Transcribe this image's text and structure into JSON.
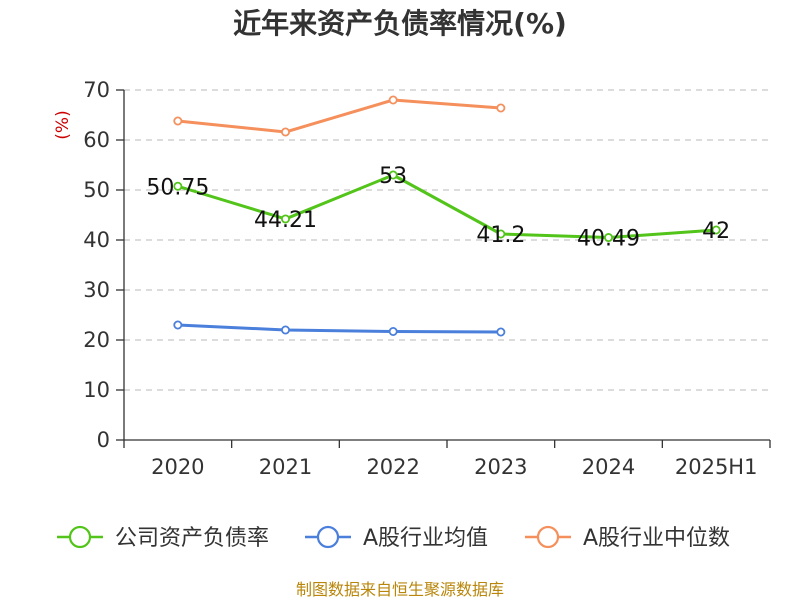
{
  "chart_data": {
    "type": "line",
    "title": "近年来资产负债率情况(%)",
    "ylabel": "(%)",
    "xlabel": "",
    "categories": [
      "2020",
      "2021",
      "2022",
      "2023",
      "2024",
      "2025H1"
    ],
    "ylim": [
      0,
      70
    ],
    "yticks": [
      0,
      10,
      20,
      30,
      40,
      50,
      60,
      70
    ],
    "grid": true,
    "legend_position": "bottom",
    "series": [
      {
        "name": "公司资产负债率",
        "color": "#52c41a",
        "values": [
          50.75,
          44.21,
          53,
          41.2,
          40.49,
          42
        ],
        "labels": [
          "50.75",
          "44.21",
          "53",
          "41.2",
          "40.49",
          "42"
        ]
      },
      {
        "name": "A股行业均值",
        "color": "#4a7fdc",
        "values": [
          23.0,
          22.0,
          21.7,
          21.6,
          null,
          null
        ],
        "labels": null
      },
      {
        "name": "A股行业中位数",
        "color": "#f5905c",
        "values": [
          63.8,
          61.6,
          68.0,
          66.4,
          null,
          null
        ],
        "labels": null
      }
    ]
  },
  "footer": "制图数据来自恒生聚源数据库"
}
